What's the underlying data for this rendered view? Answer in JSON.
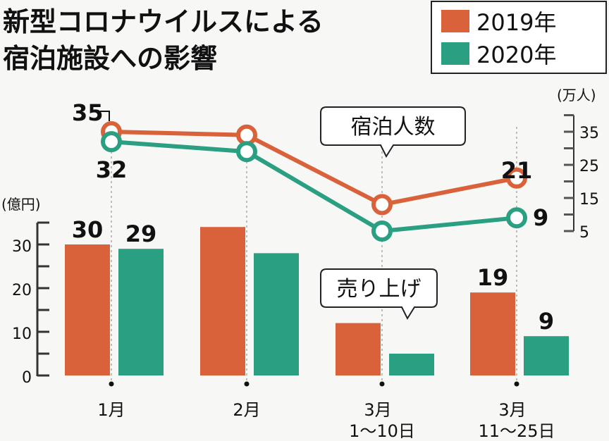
{
  "chart_data": {
    "type": "bar+line",
    "title": "新型コロナウイルスによる宿泊施設への影響",
    "legend": {
      "placement": "top-right",
      "entries": [
        "2019年",
        "2020年"
      ]
    },
    "colors": {
      "2019年": "#d9623b",
      "2020年": "#2a9f82"
    },
    "categories": [
      "1月",
      "2月",
      "3月 1～10日",
      "3月 11～25日"
    ],
    "category_lines": [
      [
        "1月"
      ],
      [
        "2月"
      ],
      [
        "3月",
        "1～10日"
      ],
      [
        "3月",
        "11～25日"
      ]
    ],
    "bars": {
      "label": "売り上げ",
      "unit": "(億円)",
      "ylim": [
        0,
        35
      ],
      "ticks": [
        0,
        10,
        20,
        30
      ],
      "series": [
        {
          "name": "2019年",
          "values": [
            30,
            34,
            12,
            19
          ],
          "data_labels": [
            "30",
            null,
            null,
            "19"
          ]
        },
        {
          "name": "2020年",
          "values": [
            29,
            28,
            5,
            9
          ],
          "data_labels": [
            "29",
            null,
            null,
            "9"
          ]
        }
      ]
    },
    "lines": {
      "label": "宿泊人数",
      "unit": "(万人)",
      "ylim": [
        5,
        40
      ],
      "ticks": [
        5,
        15,
        25,
        35
      ],
      "series": [
        {
          "name": "2019年",
          "values": [
            35,
            34,
            13,
            21
          ],
          "data_labels": [
            "35",
            null,
            null,
            "21"
          ]
        },
        {
          "name": "2020年",
          "values": [
            32,
            29,
            5,
            9
          ],
          "data_labels": [
            "32",
            null,
            null,
            "9"
          ]
        }
      ]
    }
  }
}
